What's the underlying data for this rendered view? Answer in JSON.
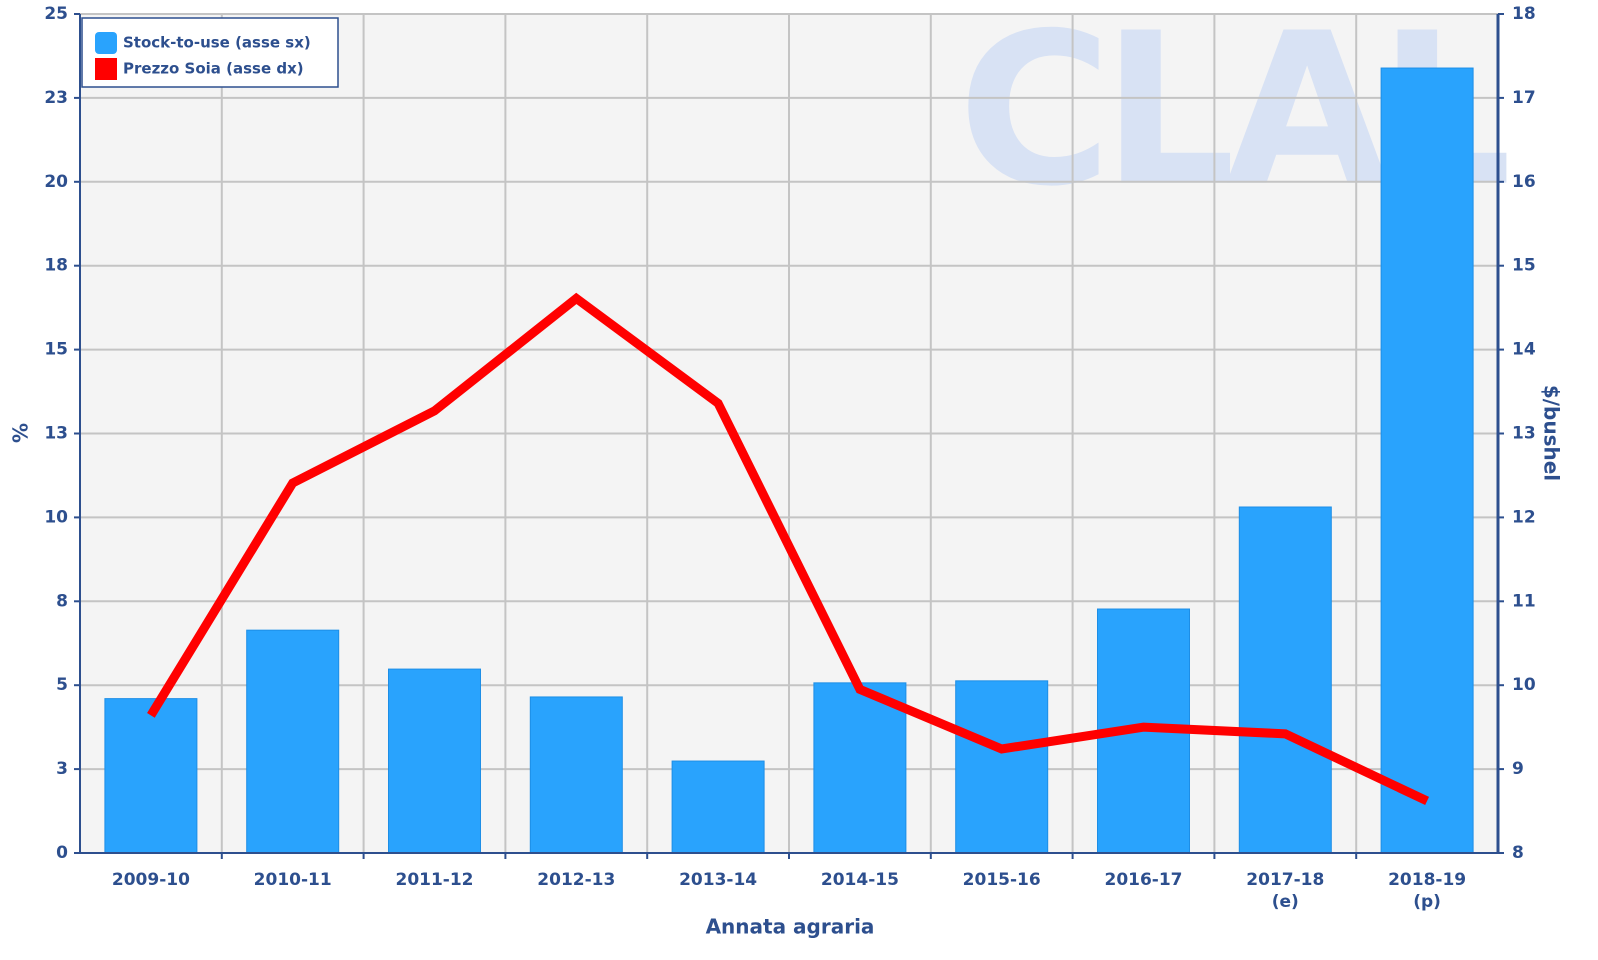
{
  "chart_data": {
    "type": "bar-line",
    "watermark": "CLAL",
    "x_label": "Annata agraria",
    "y_label": "%",
    "y2_label": "$/bushel",
    "categories": [
      "2009-10",
      "2010-11",
      "2011-12",
      "2012-13",
      "2013-14",
      "2014-15",
      "2015-16",
      "2016-17",
      "2017-18\n(e)",
      "2018-19\n(p)"
    ],
    "series": [
      {
        "name": "Stock-to-use (asse sx)",
        "type": "bar",
        "color": "#29a3fd",
        "values": [
          4.6,
          6.64,
          5.48,
          4.65,
          2.74,
          5.07,
          5.13,
          7.27,
          10.31,
          23.39
        ]
      },
      {
        "name": "Prezzo Soia (asse dx)",
        "type": "line",
        "color": "#ff0000",
        "axis": "y2",
        "values": [
          9.64,
          12.41,
          13.27,
          14.61,
          13.36,
          9.95,
          9.24,
          9.5,
          9.42,
          8.62
        ]
      }
    ],
    "ylim": [
      0,
      25
    ],
    "yticks": [
      0,
      {
        "value": 2.5,
        "label": "3"
      },
      5,
      {
        "value": 7.5,
        "label": "8"
      },
      10,
      {
        "value": 12.5,
        "label": "13"
      },
      15,
      {
        "value": 17.5,
        "label": "18"
      },
      20,
      {
        "value": 22.5,
        "label": "23"
      },
      25
    ],
    "y2lim": [
      8,
      18
    ],
    "y2ticks": [
      8,
      9,
      10,
      11,
      12,
      13,
      14,
      15,
      16,
      17,
      18
    ],
    "grid": true,
    "legend": "top-left"
  }
}
